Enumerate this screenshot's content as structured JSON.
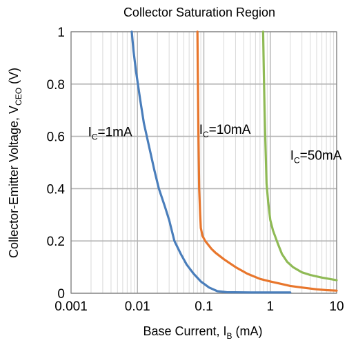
{
  "chart_data": {
    "type": "line",
    "title": "Collector Saturation Region",
    "xscale": "log",
    "xlim": [
      0.001,
      10
    ],
    "ylim": [
      0,
      1
    ],
    "grid": true,
    "xlabel": {
      "main": "Base Current, I",
      "sub": "B",
      "unit": " (mA)"
    },
    "ylabel": {
      "main": "Collector-Emitter Voltage, V",
      "sub": "CEO",
      "unit": " (V)"
    },
    "xticks": [
      {
        "value": 0.001,
        "label": "0.001"
      },
      {
        "value": 0.01,
        "label": "0.01"
      },
      {
        "value": 0.1,
        "label": "0.1"
      },
      {
        "value": 1,
        "label": "1"
      },
      {
        "value": 10,
        "label": "10"
      }
    ],
    "yticks": [
      {
        "value": 0,
        "label": "0"
      },
      {
        "value": 0.2,
        "label": "0.2"
      },
      {
        "value": 0.4,
        "label": "0.4"
      },
      {
        "value": 0.6,
        "label": "0.6"
      },
      {
        "value": 0.8,
        "label": "0.8"
      },
      {
        "value": 1,
        "label": "1"
      }
    ],
    "series": [
      {
        "label_main": "I",
        "label_sub": "C",
        "label_rest": "=1mA",
        "label_at": [
          0.0018,
          0.6
        ],
        "color": "#4a7ebb",
        "points": [
          [
            0.0082,
            1.0
          ],
          [
            0.0087,
            0.93
          ],
          [
            0.0095,
            0.85
          ],
          [
            0.011,
            0.74
          ],
          [
            0.0125,
            0.65
          ],
          [
            0.015,
            0.56
          ],
          [
            0.018,
            0.47
          ],
          [
            0.021,
            0.4
          ],
          [
            0.026,
            0.33
          ],
          [
            0.03,
            0.28
          ],
          [
            0.036,
            0.2
          ],
          [
            0.045,
            0.15
          ],
          [
            0.055,
            0.11
          ],
          [
            0.07,
            0.075
          ],
          [
            0.09,
            0.045
          ],
          [
            0.12,
            0.022
          ],
          [
            0.16,
            0.008
          ],
          [
            0.22,
            0.004
          ],
          [
            0.5,
            0.003
          ],
          [
            1.0,
            0.003
          ],
          [
            2.0,
            0.003
          ]
        ]
      },
      {
        "label_main": "I",
        "label_sub": "C",
        "label_rest": "=10mA",
        "label_at": [
          0.085,
          0.61
        ],
        "color": "#e8762c",
        "points": [
          [
            0.08,
            1.0
          ],
          [
            0.081,
            0.85
          ],
          [
            0.083,
            0.6
          ],
          [
            0.085,
            0.4
          ],
          [
            0.088,
            0.3
          ],
          [
            0.09,
            0.25
          ],
          [
            0.095,
            0.22
          ],
          [
            0.105,
            0.2
          ],
          [
            0.13,
            0.17
          ],
          [
            0.15,
            0.155
          ],
          [
            0.2,
            0.13
          ],
          [
            0.3,
            0.1
          ],
          [
            0.45,
            0.075
          ],
          [
            0.7,
            0.055
          ],
          [
            1.0,
            0.045
          ],
          [
            1.5,
            0.035
          ],
          [
            2.0,
            0.028
          ],
          [
            3.0,
            0.022
          ],
          [
            5.0,
            0.015
          ],
          [
            7.0,
            0.012
          ],
          [
            10.0,
            0.01
          ]
        ]
      },
      {
        "label_main": "I",
        "label_sub": "C",
        "label_rest": "=50mA",
        "label_at": [
          2.0,
          0.51
        ],
        "color": "#8fba55",
        "points": [
          [
            0.78,
            1.0
          ],
          [
            0.8,
            0.85
          ],
          [
            0.82,
            0.7
          ],
          [
            0.85,
            0.55
          ],
          [
            0.88,
            0.42
          ],
          [
            0.93,
            0.35
          ],
          [
            1.0,
            0.28
          ],
          [
            1.1,
            0.24
          ],
          [
            1.3,
            0.19
          ],
          [
            1.5,
            0.15
          ],
          [
            1.8,
            0.12
          ],
          [
            2.2,
            0.1
          ],
          [
            3.0,
            0.08
          ],
          [
            4.0,
            0.07
          ],
          [
            6.0,
            0.06
          ],
          [
            10.0,
            0.05
          ]
        ]
      }
    ]
  }
}
